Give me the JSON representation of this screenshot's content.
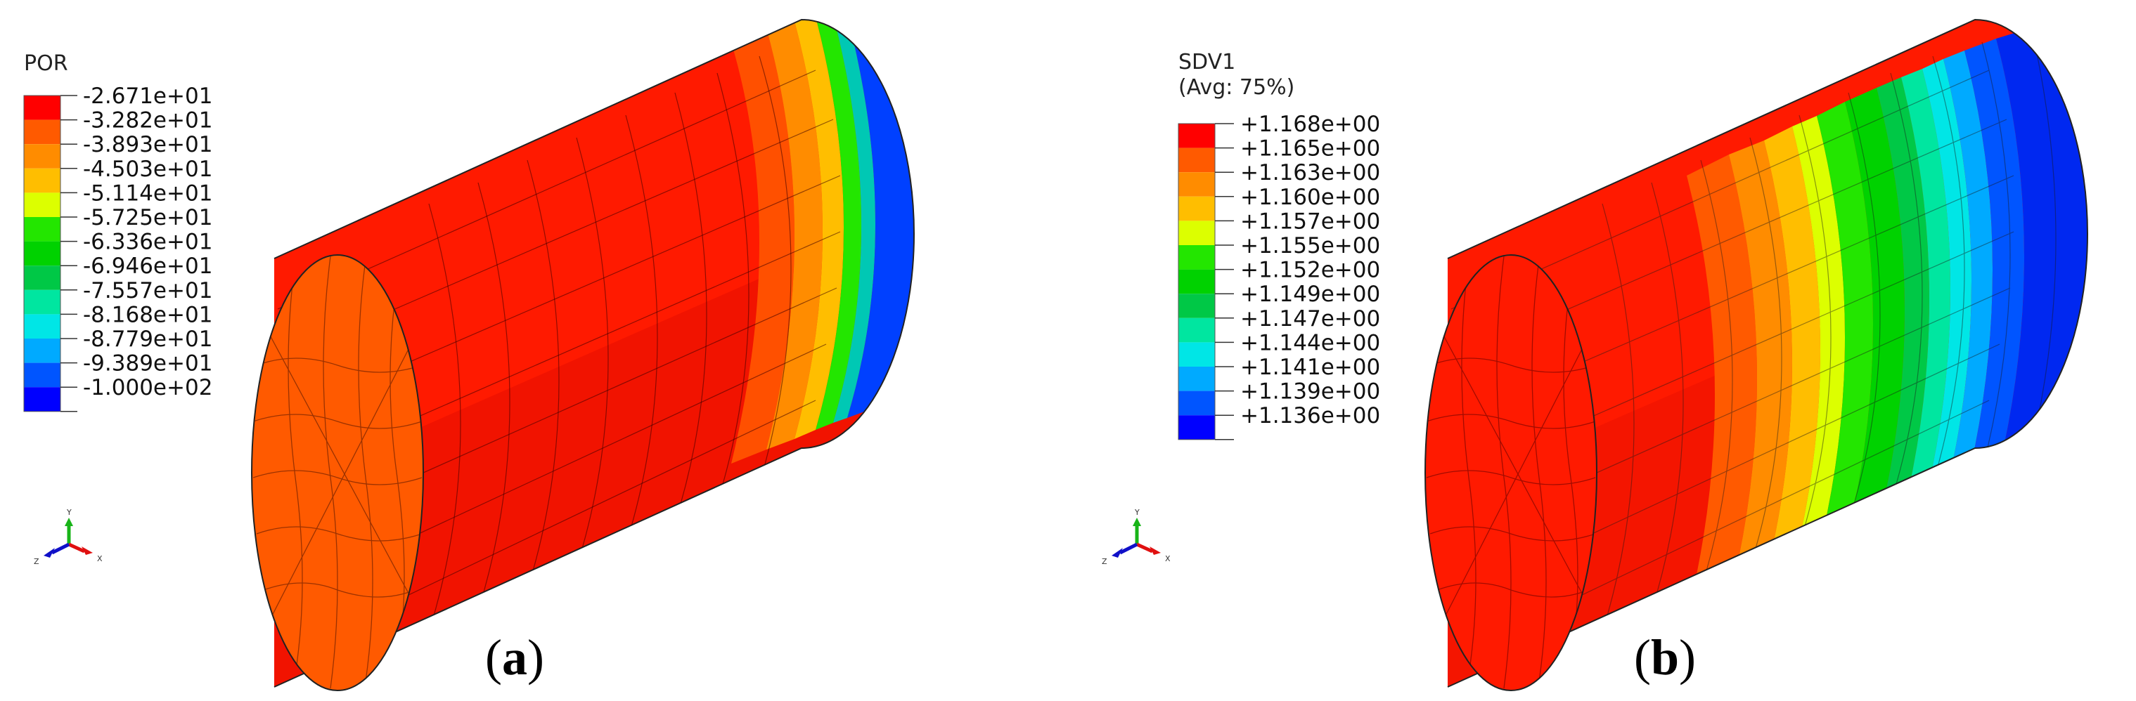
{
  "panels": [
    {
      "id": "a",
      "legend": {
        "title": "POR",
        "subtitle": "",
        "labels": [
          "-2.671e+01",
          "-3.282e+01",
          "-3.893e+01",
          "-4.503e+01",
          "-5.114e+01",
          "-5.725e+01",
          "-6.336e+01",
          "-6.946e+01",
          "-7.557e+01",
          "-8.168e+01",
          "-8.779e+01",
          "-9.389e+01",
          "-1.000e+02"
        ],
        "colors": [
          "#ff0000",
          "#ff5a00",
          "#ff8c00",
          "#ffbe00",
          "#dcff00",
          "#23e600",
          "#00d200",
          "#00c846",
          "#00e6a0",
          "#00e6e6",
          "#00aaff",
          "#0055ff",
          "#0000ff"
        ]
      },
      "caption": {
        "open": "(",
        "letter": "a",
        "close": ")"
      },
      "triad": {
        "y": "Y",
        "x": "X",
        "z": "Z"
      }
    },
    {
      "id": "b",
      "legend": {
        "title": "SDV1",
        "subtitle": "(Avg: 75%)",
        "labels": [
          "+1.168e+00",
          "+1.165e+00",
          "+1.163e+00",
          "+1.160e+00",
          "+1.157e+00",
          "+1.155e+00",
          "+1.152e+00",
          "+1.149e+00",
          "+1.147e+00",
          "+1.144e+00",
          "+1.141e+00",
          "+1.139e+00",
          "+1.136e+00"
        ],
        "colors": [
          "#ff0000",
          "#ff5a00",
          "#ff8c00",
          "#ffbe00",
          "#dcff00",
          "#23e600",
          "#00d200",
          "#00c846",
          "#00e6a0",
          "#00e6e6",
          "#00aaff",
          "#0055ff",
          "#0000ff"
        ]
      },
      "caption": {
        "open": "(",
        "letter": "b",
        "close": ")"
      },
      "triad": {
        "y": "Y",
        "x": "X",
        "z": "Z"
      }
    }
  ],
  "icons": [
    "coordinate-triad-icon"
  ]
}
